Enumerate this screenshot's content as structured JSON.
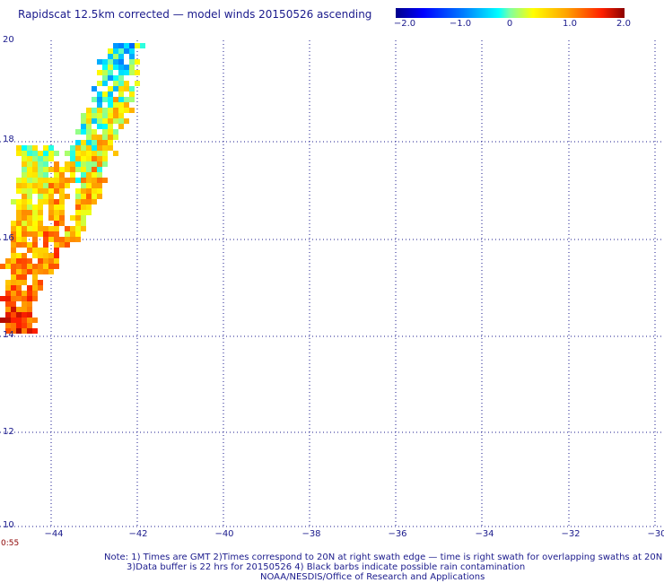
{
  "title": "Rapidscat 12.5km corrected — model winds 20150526 ascending",
  "colorbar": {
    "labels": [
      "−2.0",
      "−1.0",
      "0",
      "1.0",
      "2.0"
    ],
    "values": [
      -2.0,
      -1.0,
      0,
      1.0,
      2.0
    ],
    "min": -2.0,
    "max": 2.0
  },
  "map": {
    "lat_labels": [
      "20",
      "18",
      "16",
      "14",
      "12",
      "10"
    ],
    "lon_labels": [
      "−44",
      "−42",
      "−40",
      "−38",
      "−36",
      "−34",
      "−32",
      "−30"
    ],
    "lat_range": [
      10,
      20
    ],
    "lon_range": [
      -45,
      -30
    ],
    "gridlines": true,
    "time_label": "0:55"
  },
  "notes": {
    "line1": "Note: 1) Times are GMT 2)Times correspond to 20N at right swath edge — time is right swath for overlapping swaths at 20N",
    "line2": "3)Data buffer is 22 hrs for 20150526 4) Black barbs indicate possible rain contamination",
    "line3": "NOAA/NESDIS/Office of Research and Applications"
  },
  "colors": {
    "text": "#1a1a8c",
    "grid": "#1a1a8c",
    "time": "#8b0000"
  }
}
